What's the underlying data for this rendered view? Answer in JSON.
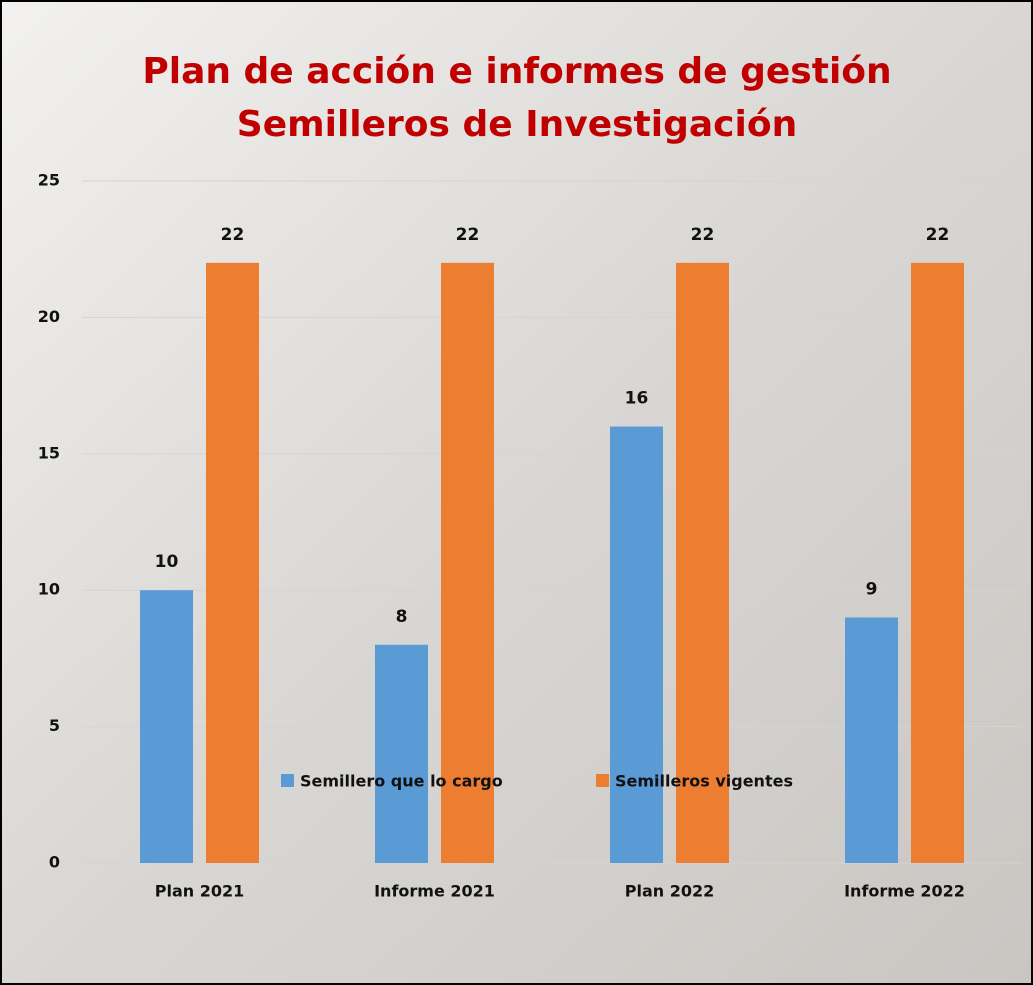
{
  "chart_data": {
    "type": "bar",
    "title": [
      "Plan de acción e informes de gestión",
      "Semilleros de Investigación"
    ],
    "categories": [
      "Plan 2021",
      "Informe 2021",
      "Plan 2022",
      "Informe 2022"
    ],
    "series": [
      {
        "name": "Semillero que lo cargo",
        "color": "#5b9bd5",
        "values": [
          10,
          8,
          16,
          9
        ]
      },
      {
        "name": "Semilleros vigentes",
        "color": "#ed7d31",
        "values": [
          22,
          22,
          22,
          22
        ]
      }
    ],
    "ylim": [
      0,
      25
    ],
    "yticks": [
      0,
      5,
      10,
      15,
      20,
      25
    ],
    "grid": true,
    "legend": "bottom"
  }
}
